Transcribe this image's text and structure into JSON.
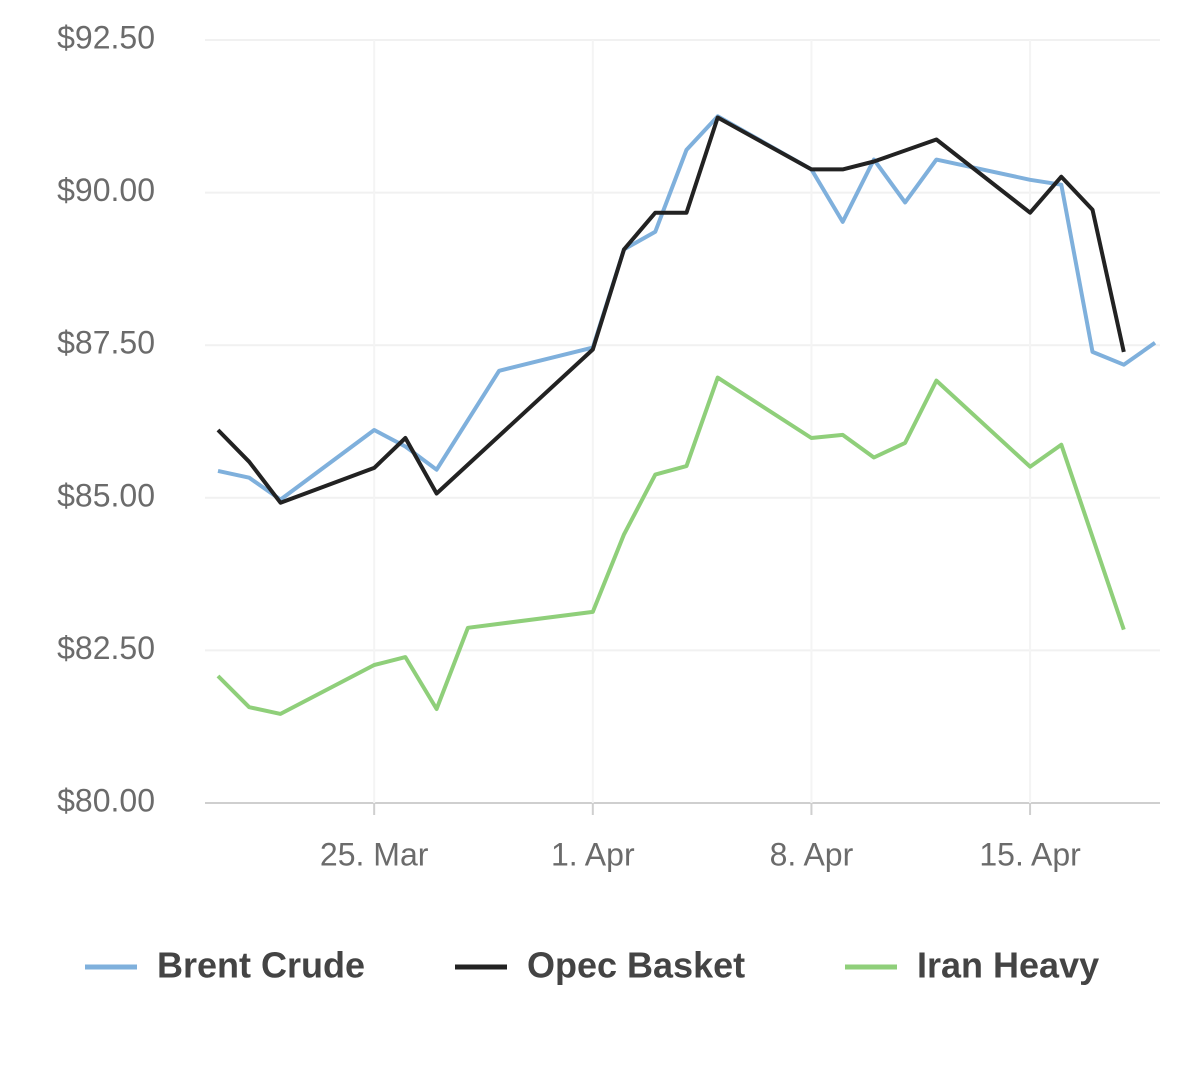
{
  "chart_data": {
    "type": "line",
    "ylim": [
      80,
      92.5
    ],
    "yticks": [
      {
        "value": 80,
        "label": "$80.00"
      },
      {
        "value": 82.5,
        "label": "$82.50"
      },
      {
        "value": 85,
        "label": "$85.00"
      },
      {
        "value": 87.5,
        "label": "$87.50"
      },
      {
        "value": 90,
        "label": "$90.00"
      },
      {
        "value": 92.5,
        "label": "$92.50"
      }
    ],
    "xticks": [
      "25. Mar",
      "1. Apr",
      "8. Apr",
      "15. Apr"
    ],
    "grid": true,
    "legend": "bottom",
    "series": [
      {
        "name": "Brent Crude",
        "color": "#7fb0dc",
        "x": [
          "20. Mar",
          "21. Mar",
          "22. Mar",
          "25. Mar",
          "26. Mar",
          "27. Mar",
          "29. Mar",
          "1. Apr",
          "2. Apr",
          "3. Apr",
          "4. Apr",
          "5. Apr",
          "8. Apr",
          "9. Apr",
          "10. Apr",
          "11. Apr",
          "12. Apr",
          "15. Apr",
          "16. Apr",
          "17. Apr",
          "18. Apr",
          "19. Apr"
        ],
        "values": [
          85.44,
          85.33,
          84.97,
          86.11,
          85.84,
          85.46,
          87.08,
          87.46,
          89.07,
          89.36,
          90.7,
          91.25,
          90.38,
          89.52,
          90.54,
          89.84,
          90.54,
          90.21,
          90.13,
          87.39,
          87.18,
          87.54
        ]
      },
      {
        "name": "Opec Basket",
        "color": "#222222",
        "x": [
          "20. Mar",
          "21. Mar",
          "22. Mar",
          "25. Mar",
          "26. Mar",
          "27. Mar",
          "1. Apr",
          "2. Apr",
          "3. Apr",
          "4. Apr",
          "5. Apr",
          "8. Apr",
          "9. Apr",
          "10. Apr",
          "12. Apr",
          "15. Apr",
          "16. Apr",
          "17. Apr",
          "18. Apr"
        ],
        "values": [
          86.11,
          85.59,
          84.92,
          85.49,
          85.98,
          85.07,
          87.43,
          89.07,
          89.67,
          89.67,
          91.23,
          90.38,
          90.38,
          90.51,
          90.87,
          89.67,
          90.26,
          89.72,
          87.39
        ]
      },
      {
        "name": "Iran Heavy",
        "color": "#8fcf7a",
        "x": [
          "20. Mar",
          "21. Mar",
          "22. Mar",
          "25. Mar",
          "26. Mar",
          "27. Mar",
          "28. Mar",
          "1. Apr",
          "2. Apr",
          "3. Apr",
          "4. Apr",
          "5. Apr",
          "8. Apr",
          "9. Apr",
          "10. Apr",
          "11. Apr",
          "12. Apr",
          "15. Apr",
          "16. Apr",
          "18. Apr"
        ],
        "values": [
          82.08,
          81.57,
          81.46,
          82.26,
          82.39,
          81.54,
          82.87,
          83.13,
          84.4,
          85.38,
          85.52,
          86.97,
          85.98,
          86.03,
          85.66,
          85.9,
          86.92,
          85.51,
          85.87,
          82.84
        ]
      }
    ]
  }
}
